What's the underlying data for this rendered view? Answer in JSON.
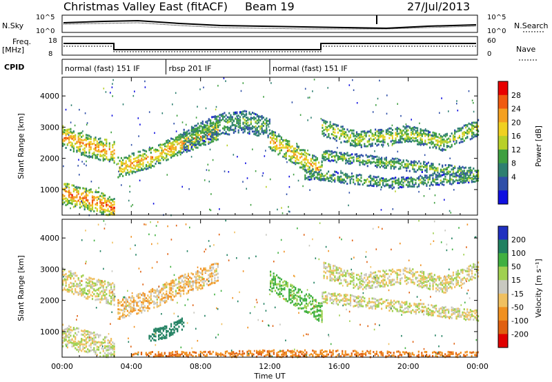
{
  "header": {
    "title": "Christmas Valley East (fitACF)",
    "beam": "Beam 19",
    "date": "27/Jul/2013"
  },
  "noise_panel": {
    "left_label": "N.Sky",
    "right_label": "N.Search",
    "left_ticks": [
      "10^5",
      "10^0"
    ],
    "right_ticks": [
      "10^5",
      "10^0"
    ]
  },
  "freq_panel": {
    "left_label_1": "Freq.",
    "left_label_2": "[MHz]",
    "right_label": "Nave",
    "left_ticks": [
      "18",
      "8"
    ],
    "right_ticks": [
      "60",
      "0"
    ]
  },
  "cpid_panel": {
    "label": "CPID",
    "modes": [
      {
        "name": "normal (fast) 151 IF",
        "start": 0,
        "end": 6
      },
      {
        "name": "rbsp 201 IF",
        "start": 6,
        "end": 12
      },
      {
        "name": "normal (fast) 151 IF",
        "start": 12,
        "end": 24
      }
    ]
  },
  "axes": {
    "ylabel": "Slant Range [km]",
    "xlabel": "Time UT",
    "x_ticks": [
      "00:00",
      "04:00",
      "08:00",
      "12:00",
      "16:00",
      "20:00",
      "00:00"
    ],
    "y_ticks": [
      "1000",
      "2000",
      "3000",
      "4000"
    ]
  },
  "power_colorbar": {
    "label": "Power [dB]",
    "ticks": [
      "28",
      "24",
      "20",
      "16",
      "12",
      "8",
      "4"
    ],
    "colors": [
      "#e80000",
      "#f05a10",
      "#f5a020",
      "#f0d020",
      "#b8d028",
      "#3f9f40",
      "#2e7f70",
      "#2f4fa8",
      "#1010e0"
    ]
  },
  "velocity_colorbar": {
    "label": "Velocity [m s⁻¹]",
    "ticks": [
      "200",
      "100",
      "50",
      "15",
      "-15",
      "-50",
      "-100",
      "-200"
    ],
    "colors": [
      "#2030c0",
      "#208060",
      "#40b040",
      "#a0d050",
      "#c8c8c0",
      "#f0c060",
      "#f09020",
      "#e06010",
      "#e00000"
    ]
  },
  "chart_data": [
    {
      "type": "heatmap",
      "title": "Power",
      "xlabel": "Time UT",
      "ylabel": "Slant Range [km]",
      "xlim": [
        0,
        24
      ],
      "ylim": [
        180,
        4600
      ],
      "colorbar": {
        "label": "Power [dB]",
        "range": [
          0,
          30
        ]
      },
      "bands": [
        {
          "t": [
            0,
            1.5,
            3
          ],
          "r": [
            2700,
            2400,
            2200
          ],
          "w": 350,
          "p": 20
        },
        {
          "t": [
            3.2,
            5,
            7,
            9
          ],
          "r": [
            1700,
            2000,
            2500,
            2900
          ],
          "w": 300,
          "p": 19
        },
        {
          "t": [
            7,
            9,
            10.5,
            12
          ],
          "r": [
            2600,
            3100,
            3200,
            3000
          ],
          "w": 350,
          "p": 10
        },
        {
          "t": [
            12,
            13.5,
            15
          ],
          "r": [
            2600,
            2100,
            1600
          ],
          "w": 300,
          "p": 18
        },
        {
          "t": [
            15,
            18,
            21,
            24
          ],
          "r": [
            2100,
            1900,
            1700,
            1500
          ],
          "w": 150,
          "p": 12
        },
        {
          "t": [
            15,
            17,
            20,
            22,
            24
          ],
          "r": [
            3000,
            2600,
            2800,
            2500,
            3000
          ],
          "w": 250,
          "p": 14
        },
        {
          "t": [
            0,
            1.5,
            3
          ],
          "r": [
            900,
            700,
            400
          ],
          "w": 350,
          "p": 22
        },
        {
          "t": [
            14,
            19,
            24
          ],
          "r": [
            1500,
            1200,
            1400
          ],
          "w": 150,
          "p": 11
        }
      ]
    },
    {
      "type": "heatmap",
      "title": "Velocity",
      "xlabel": "Time UT",
      "ylabel": "Slant Range [km]",
      "xlim": [
        0,
        24
      ],
      "ylim": [
        180,
        4600
      ],
      "colorbar": {
        "label": "Velocity [m s⁻¹]",
        "range": [
          -200,
          200
        ]
      },
      "bands": [
        {
          "t": [
            0,
            1.5,
            3
          ],
          "r": [
            2700,
            2400,
            2200
          ],
          "w": 350,
          "v": 0
        },
        {
          "t": [
            3.2,
            5,
            7,
            9
          ],
          "r": [
            1700,
            2000,
            2500,
            2900
          ],
          "w": 300,
          "v": -20
        },
        {
          "t": [
            12,
            13.5,
            15
          ],
          "r": [
            2600,
            2100,
            1600
          ],
          "w": 300,
          "v": 40
        },
        {
          "t": [
            15,
            18,
            21,
            24
          ],
          "r": [
            2100,
            1900,
            1700,
            1500
          ],
          "w": 150,
          "v": 0
        },
        {
          "t": [
            15,
            17,
            20,
            22,
            24
          ],
          "r": [
            3000,
            2600,
            2800,
            2500,
            3000
          ],
          "w": 250,
          "v": 0
        },
        {
          "t": [
            0,
            1.5,
            3
          ],
          "r": [
            900,
            700,
            400
          ],
          "w": 350,
          "v": 0
        },
        {
          "t": [
            5,
            6,
            7
          ],
          "r": [
            900,
            1000,
            1300
          ],
          "w": 200,
          "v": 120
        },
        {
          "t": [
            4,
            8,
            12,
            16,
            20,
            24
          ],
          "r": [
            250,
            250,
            300,
            300,
            250,
            250
          ],
          "w": 100,
          "v": -70
        }
      ]
    }
  ]
}
